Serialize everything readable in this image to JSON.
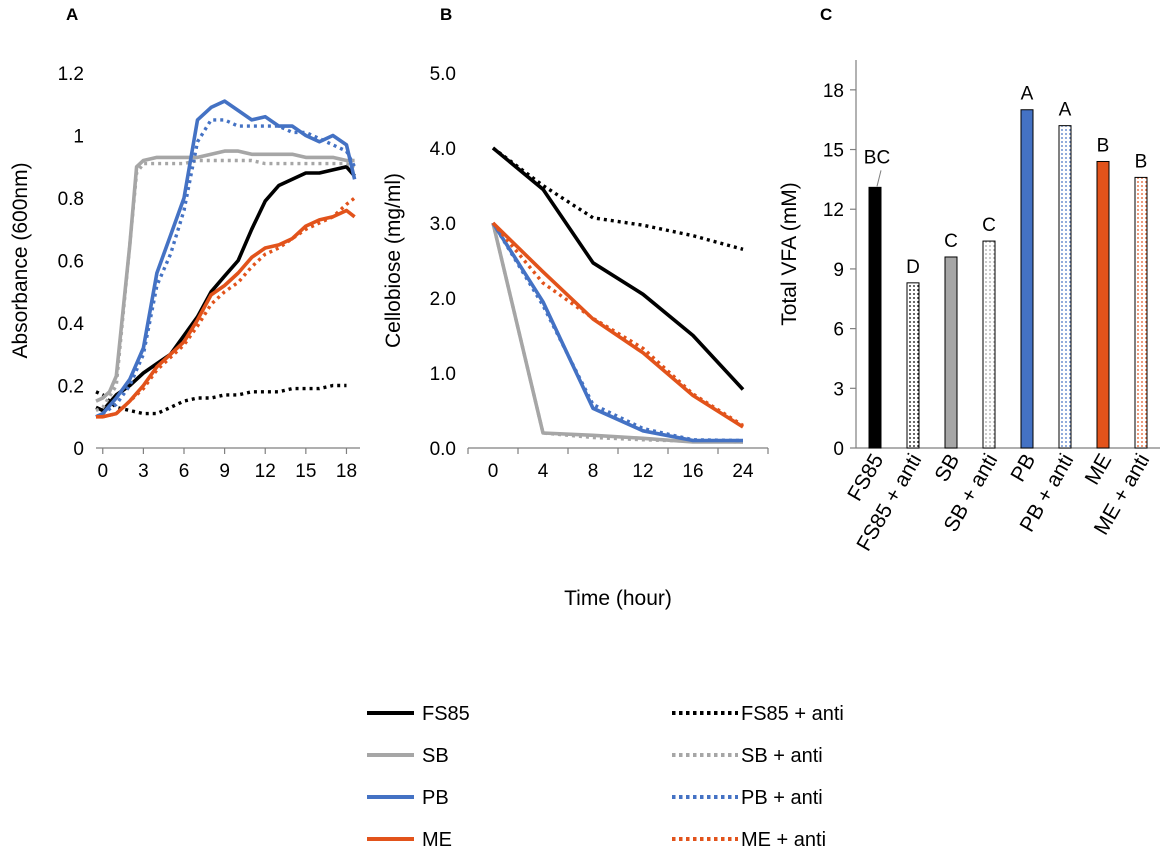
{
  "colors": {
    "FS85": "#000000",
    "SB": "#a6a6a6",
    "PB": "#4472c4",
    "ME": "#e2531b"
  },
  "legend": [
    {
      "label": "FS85",
      "key": "FS85",
      "dash": false
    },
    {
      "label": "FS85 + anti",
      "key": "FS85",
      "dash": true
    },
    {
      "label": "SB",
      "key": "SB",
      "dash": false
    },
    {
      "label": "SB + anti",
      "key": "SB",
      "dash": true
    },
    {
      "label": "PB",
      "key": "PB",
      "dash": false
    },
    {
      "label": "PB + anti",
      "key": "PB",
      "dash": true
    },
    {
      "label": "ME",
      "key": "ME",
      "dash": false
    },
    {
      "label": "ME + anti",
      "key": "ME",
      "dash": true
    }
  ],
  "chart_data": [
    {
      "panel": "A",
      "type": "line",
      "ylabel": "Absorbance (600nm)",
      "xlabel": "",
      "xlim": [
        -0.5,
        19
      ],
      "ylim": [
        0,
        1.2
      ],
      "xticks": [
        0,
        3,
        6,
        9,
        12,
        15,
        18
      ],
      "xtick_labels": [
        "0",
        "3",
        "6",
        "9",
        "12",
        "15",
        "18"
      ],
      "yticks": [
        0,
        0.2,
        0.4,
        0.6,
        0.8,
        1,
        1.2
      ],
      "ytick_labels": [
        "0",
        "0.2",
        "0.4",
        "0.6",
        "0.8",
        "1",
        "1.2"
      ],
      "series": [
        {
          "name": "FS85",
          "key": "FS85",
          "dash": false,
          "x": [
            -0.5,
            0,
            1,
            2,
            3,
            4,
            5,
            6,
            7,
            8,
            9,
            10,
            11,
            12,
            13,
            14,
            15,
            16,
            17,
            18,
            18.6
          ],
          "y": [
            0.13,
            0.12,
            0.17,
            0.2,
            0.24,
            0.27,
            0.3,
            0.36,
            0.42,
            0.5,
            0.55,
            0.6,
            0.7,
            0.79,
            0.84,
            0.86,
            0.88,
            0.88,
            0.89,
            0.9,
            0.87
          ]
        },
        {
          "name": "FS85 + anti",
          "key": "FS85",
          "dash": true,
          "x": [
            -0.5,
            0,
            1,
            2,
            3,
            4,
            5,
            6,
            7,
            8,
            9,
            10,
            11,
            12,
            13,
            14,
            15,
            16,
            17,
            18
          ],
          "y": [
            0.18,
            0.17,
            0.13,
            0.12,
            0.11,
            0.11,
            0.13,
            0.15,
            0.16,
            0.16,
            0.17,
            0.17,
            0.18,
            0.18,
            0.18,
            0.19,
            0.19,
            0.19,
            0.2,
            0.2
          ]
        },
        {
          "name": "SB",
          "key": "SB",
          "dash": false,
          "x": [
            -0.5,
            0,
            0.5,
            1,
            2,
            2.5,
            3,
            4,
            5,
            6,
            7,
            8,
            9,
            10,
            11,
            12,
            13,
            14,
            15,
            16,
            17,
            18,
            18.6
          ],
          "y": [
            0.15,
            0.16,
            0.18,
            0.23,
            0.65,
            0.9,
            0.92,
            0.93,
            0.93,
            0.93,
            0.93,
            0.94,
            0.95,
            0.95,
            0.94,
            0.94,
            0.94,
            0.94,
            0.93,
            0.93,
            0.93,
            0.92,
            0.92
          ]
        },
        {
          "name": "SB + anti",
          "key": "SB",
          "dash": true,
          "x": [
            -0.5,
            0,
            1,
            2,
            2.5,
            3,
            4,
            5,
            6,
            7,
            8,
            9,
            10,
            11,
            12,
            13,
            14,
            15,
            16,
            17,
            18,
            18.6
          ],
          "y": [
            0.12,
            0.13,
            0.2,
            0.65,
            0.88,
            0.91,
            0.91,
            0.91,
            0.91,
            0.92,
            0.92,
            0.92,
            0.92,
            0.92,
            0.91,
            0.91,
            0.91,
            0.91,
            0.91,
            0.91,
            0.91,
            0.9
          ]
        },
        {
          "name": "PB",
          "key": "PB",
          "dash": false,
          "x": [
            -0.5,
            0,
            1,
            2,
            3,
            4,
            5,
            6,
            7,
            8,
            9,
            10,
            11,
            12,
            13,
            14,
            15,
            16,
            17,
            18,
            18.6
          ],
          "y": [
            0.1,
            0.11,
            0.16,
            0.22,
            0.32,
            0.56,
            0.68,
            0.8,
            1.05,
            1.09,
            1.11,
            1.08,
            1.05,
            1.06,
            1.03,
            1.03,
            1.0,
            0.98,
            1.0,
            0.97,
            0.86
          ]
        },
        {
          "name": "PB + anti",
          "key": "PB",
          "dash": true,
          "x": [
            -0.5,
            0,
            1,
            2,
            3,
            4,
            5,
            6,
            7,
            8,
            9,
            10,
            11,
            12,
            13,
            14,
            15,
            16,
            17,
            18,
            18.6
          ],
          "y": [
            0.1,
            0.11,
            0.14,
            0.2,
            0.3,
            0.52,
            0.62,
            0.76,
            0.98,
            1.05,
            1.05,
            1.03,
            1.03,
            1.03,
            1.03,
            1.01,
            1.01,
            0.99,
            0.97,
            0.95,
            0.9
          ]
        },
        {
          "name": "ME",
          "key": "ME",
          "dash": false,
          "x": [
            -0.5,
            0,
            1,
            2,
            3,
            4,
            5,
            6,
            7,
            8,
            9,
            10,
            11,
            12,
            13,
            14,
            15,
            16,
            17,
            18,
            18.6
          ],
          "y": [
            0.1,
            0.1,
            0.11,
            0.15,
            0.2,
            0.26,
            0.3,
            0.34,
            0.41,
            0.49,
            0.52,
            0.56,
            0.61,
            0.64,
            0.65,
            0.67,
            0.71,
            0.73,
            0.74,
            0.76,
            0.74
          ]
        },
        {
          "name": "ME + anti",
          "key": "ME",
          "dash": true,
          "x": [
            -0.5,
            0,
            1,
            2,
            3,
            4,
            5,
            6,
            7,
            8,
            9,
            10,
            11,
            12,
            13,
            14,
            15,
            16,
            17,
            18,
            18.6
          ],
          "y": [
            0.1,
            0.1,
            0.11,
            0.15,
            0.19,
            0.25,
            0.29,
            0.33,
            0.39,
            0.46,
            0.5,
            0.53,
            0.58,
            0.62,
            0.64,
            0.67,
            0.7,
            0.72,
            0.74,
            0.78,
            0.8
          ]
        }
      ]
    },
    {
      "panel": "B",
      "type": "line",
      "ylabel": "Cellobiose (mg/ml)",
      "xlabel": "Time (hour)",
      "ylim": [
        0,
        5
      ],
      "categories": [
        "0",
        "4",
        "8",
        "12",
        "16",
        "24"
      ],
      "yticks": [
        0,
        1,
        2,
        3,
        4,
        5
      ],
      "ytick_labels": [
        "0.0",
        "1.0",
        "2.0",
        "3.0",
        "4.0",
        "5.0"
      ],
      "series": [
        {
          "name": "FS85",
          "key": "FS85",
          "dash": false,
          "values": [
            4.0,
            3.45,
            2.47,
            2.05,
            1.5,
            0.78
          ]
        },
        {
          "name": "FS85 + anti",
          "key": "FS85",
          "dash": true,
          "values": [
            4.0,
            3.5,
            3.07,
            2.97,
            2.83,
            2.65
          ]
        },
        {
          "name": "SB",
          "key": "SB",
          "dash": false,
          "values": [
            3.0,
            0.2,
            0.17,
            0.13,
            0.08,
            0.08
          ]
        },
        {
          "name": "SB + anti",
          "key": "SB",
          "dash": true,
          "values": [
            3.0,
            0.2,
            0.14,
            0.11,
            0.09,
            0.08
          ]
        },
        {
          "name": "PB",
          "key": "PB",
          "dash": false,
          "values": [
            3.0,
            1.95,
            0.53,
            0.23,
            0.1,
            0.1
          ]
        },
        {
          "name": "PB + anti",
          "key": "PB",
          "dash": true,
          "values": [
            3.0,
            1.9,
            0.58,
            0.26,
            0.11,
            0.1
          ]
        },
        {
          "name": "ME",
          "key": "ME",
          "dash": false,
          "values": [
            3.0,
            2.35,
            1.72,
            1.27,
            0.7,
            0.28
          ]
        },
        {
          "name": "ME + anti",
          "key": "ME",
          "dash": true,
          "values": [
            3.0,
            2.2,
            1.73,
            1.33,
            0.72,
            0.3
          ]
        }
      ]
    },
    {
      "panel": "C",
      "type": "bar",
      "ylabel": "Total VFA (mM)",
      "xlabel": "",
      "ylim": [
        0,
        19.5
      ],
      "yticks": [
        0,
        3,
        6,
        9,
        12,
        15,
        18
      ],
      "ytick_labels": [
        "0",
        "3",
        "6",
        "9",
        "12",
        "15",
        "18"
      ],
      "categories": [
        "FS85",
        "FS85 + anti",
        "SB",
        "SB + anti",
        "PB",
        "PB + anti",
        "ME",
        "ME + anti"
      ],
      "values": [
        13.1,
        8.3,
        9.6,
        10.4,
        17.0,
        16.2,
        14.4,
        13.6
      ],
      "keys": [
        "FS85",
        "FS85",
        "SB",
        "SB",
        "PB",
        "PB",
        "ME",
        "ME"
      ],
      "dotted": [
        false,
        true,
        false,
        true,
        false,
        true,
        false,
        true
      ],
      "letters": [
        "BC",
        "D",
        "C",
        "C",
        "A",
        "A",
        "B",
        "B"
      ]
    }
  ]
}
